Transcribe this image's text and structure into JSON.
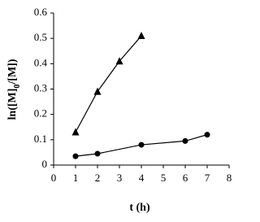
{
  "chart_data": {
    "type": "scatter",
    "x_label": "t (h)",
    "y_label_parts": [
      "ln([M]",
      "0",
      "/[M])"
    ],
    "xlim": [
      0,
      8
    ],
    "xticks": [
      0,
      1,
      2,
      3,
      4,
      5,
      6,
      7,
      8
    ],
    "ylim": [
      0,
      0.6
    ],
    "yticks": [
      0,
      0.1,
      0.2,
      0.3,
      0.4,
      0.5,
      0.6
    ],
    "trend_line": true,
    "series": [
      {
        "marker": "triangle",
        "color": "#000000",
        "x": [
          1,
          2,
          3,
          4
        ],
        "values": [
          0.13,
          0.29,
          0.41,
          0.51
        ]
      },
      {
        "marker": "circle",
        "color": "#000000",
        "x": [
          1,
          2,
          4,
          6,
          7
        ],
        "values": [
          0.035,
          0.045,
          0.08,
          0.095,
          0.12
        ]
      }
    ]
  }
}
